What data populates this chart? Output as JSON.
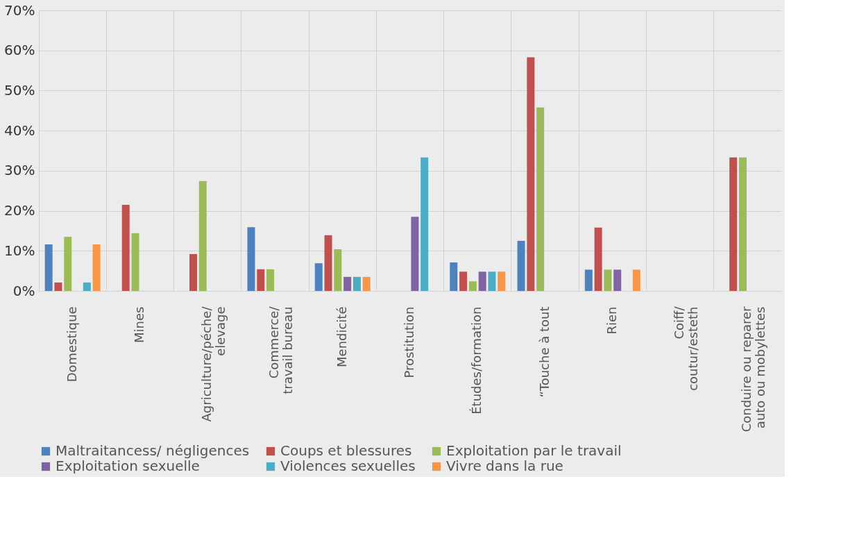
{
  "chart_data": {
    "type": "bar",
    "categories": [
      "Domestique",
      "Mines",
      "Agriculture/péche/\nelevage",
      "Commerce/\ntravail bureau",
      "Mendicité",
      "Prostitution",
      "Études/formation",
      "“Touche à tout",
      "Rien",
      "Coiff/\ncoutur/esteth",
      "Conduire ou reparer\nauto ou mobylettes"
    ],
    "series": [
      {
        "name": "Maltraitancess/ négligences",
        "color": "#4f81bd",
        "values": [
          11.6,
          null,
          null,
          15.9,
          6.9,
          null,
          7.1,
          12.5,
          5.3,
          null,
          null
        ]
      },
      {
        "name": "Coups et blessures",
        "color": "#c0504d",
        "values": [
          2.1,
          21.5,
          9.2,
          5.4,
          13.9,
          null,
          4.8,
          58.3,
          15.8,
          null,
          33.3
        ]
      },
      {
        "name": "Exploitation par le travail",
        "color": "#9bbb59",
        "values": [
          13.5,
          14.4,
          27.4,
          5.4,
          10.4,
          null,
          2.4,
          45.8,
          5.3,
          null,
          33.3
        ]
      },
      {
        "name": "Exploitation sexuelle",
        "color": "#8064a2",
        "values": [
          null,
          null,
          null,
          null,
          3.5,
          18.5,
          4.8,
          null,
          5.3,
          null,
          null
        ]
      },
      {
        "name": "Violences sexuelles",
        "color": "#4bacc6",
        "values": [
          2.1,
          null,
          null,
          null,
          3.5,
          33.3,
          4.8,
          null,
          null,
          null,
          null
        ]
      },
      {
        "name": "Vivre dans la rue",
        "color": "#f79646",
        "values": [
          11.6,
          null,
          null,
          null,
          3.5,
          null,
          4.8,
          null,
          5.3,
          null,
          null
        ]
      }
    ],
    "ylim": [
      0,
      70
    ],
    "yticks": [
      {
        "value": 0,
        "label": "0%"
      },
      {
        "value": 10,
        "label": "10%"
      },
      {
        "value": 20,
        "label": "20%"
      },
      {
        "value": 30,
        "label": "30%"
      },
      {
        "value": 40,
        "label": "40%"
      },
      {
        "value": 50,
        "label": "50%"
      },
      {
        "value": 60,
        "label": "60%"
      },
      {
        "value": 70,
        "label": "70%"
      }
    ],
    "grid": true,
    "legend": "bottom"
  }
}
